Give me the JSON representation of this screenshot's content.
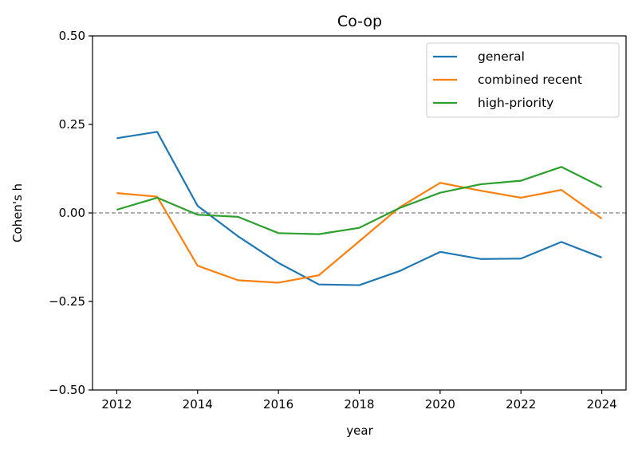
{
  "chart_data": {
    "type": "line",
    "title": "Co-op",
    "xlabel": "year",
    "ylabel": "Cohen's h",
    "x": [
      2012,
      2013,
      2014,
      2015,
      2016,
      2017,
      2018,
      2019,
      2020,
      2021,
      2022,
      2023,
      2024
    ],
    "xlim": [
      2011.4,
      2024.6
    ],
    "ylim": [
      -0.5,
      0.5
    ],
    "xticks": [
      2012,
      2014,
      2016,
      2018,
      2020,
      2022,
      2024
    ],
    "xtick_labels": [
      "2012",
      "2014",
      "2016",
      "2018",
      "2020",
      "2022",
      "2024"
    ],
    "yticks": [
      -0.5,
      -0.25,
      0.0,
      0.25,
      0.5
    ],
    "ytick_labels": [
      "−0.50",
      "−0.25",
      "0.00",
      "0.25",
      "0.50"
    ],
    "reference_line": {
      "y": 0.0,
      "style": "dashed",
      "color": "#808080"
    },
    "legend_position": "top-right",
    "series": [
      {
        "name": "general",
        "color": "#1f77b4",
        "values": [
          0.211,
          0.229,
          0.02,
          -0.066,
          -0.141,
          -0.202,
          -0.204,
          -0.164,
          -0.11,
          -0.13,
          -0.129,
          -0.082,
          -0.126
        ]
      },
      {
        "name": "combined recent",
        "color": "#ff7f0e",
        "values": [
          0.056,
          0.046,
          -0.149,
          -0.19,
          -0.197,
          -0.176,
          -0.08,
          0.016,
          0.085,
          0.063,
          0.043,
          0.065,
          -0.016
        ]
      },
      {
        "name": "high-priority",
        "color": "#2ca02c",
        "values": [
          0.009,
          0.043,
          -0.005,
          -0.011,
          -0.057,
          -0.06,
          -0.042,
          0.014,
          0.057,
          0.081,
          0.091,
          0.13,
          0.073
        ]
      }
    ]
  }
}
